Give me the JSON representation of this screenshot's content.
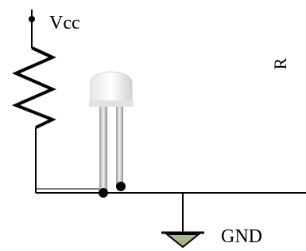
{
  "labels": {
    "supply": "Vcc",
    "resistor": "R",
    "ground": "GND"
  }
}
